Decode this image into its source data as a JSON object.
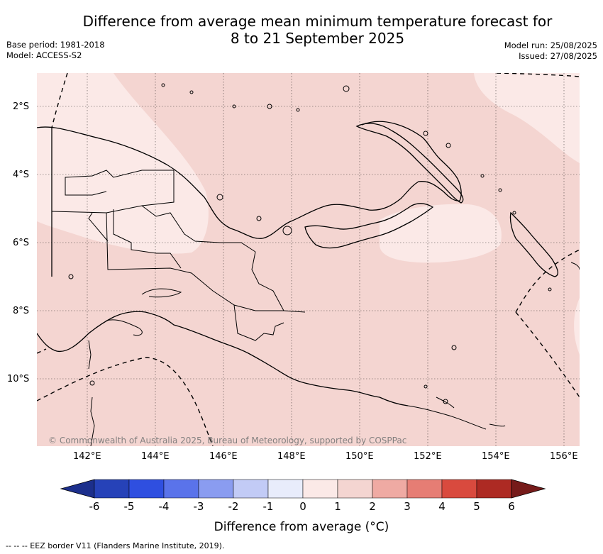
{
  "title": {
    "line1": "Difference from average mean minimum temperature forecast for",
    "line2": "8 to 21 September 2025"
  },
  "meta": {
    "base_period": "Base period: 1981-2018",
    "model": "Model: ACCESS-S2",
    "model_run": "Model run: 25/08/2025",
    "issued": "Issued: 27/08/2025"
  },
  "map": {
    "lat_labels": [
      "2°S",
      "4°S",
      "6°S",
      "8°S",
      "10°S"
    ],
    "lon_labels": [
      "142°E",
      "144°E",
      "146°E",
      "148°E",
      "150°E",
      "152°E",
      "154°E",
      "156°E"
    ],
    "copyright": "© Commonwealth of Australia 2025, Bureau of Meteorology, supported by COSPPac",
    "colors": {
      "anomaly_0_1": "#fbe9e7",
      "anomaly_1_2": "#f4d5d1",
      "coastline": "#000000",
      "eez_border": "#000000"
    }
  },
  "colorbar": {
    "ticks": [
      "-6",
      "-5",
      "-4",
      "-3",
      "-2",
      "-1",
      "0",
      "1",
      "2",
      "3",
      "4",
      "5",
      "6"
    ],
    "colors": [
      "#1c2f8c",
      "#2642b8",
      "#2f4fe0",
      "#5a73ea",
      "#8a9cf0",
      "#c2cbf6",
      "#e8ecfb",
      "#fbe9e7",
      "#f4d5d1",
      "#efaaa3",
      "#e67d74",
      "#d94a3e",
      "#ad2a23",
      "#761b1a"
    ],
    "label": "Difference from average (°C)"
  },
  "footnote": "-- -- -- EEZ border V11 (Flanders Marine Institute, 2019)."
}
